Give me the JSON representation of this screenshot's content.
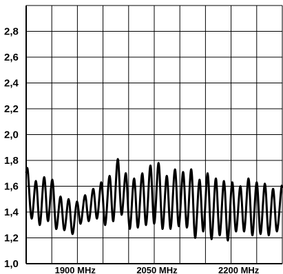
{
  "chart_data": {
    "type": "line",
    "title": "",
    "xlabel": "",
    "ylabel": "",
    "grid": true,
    "y_ticks": [
      "1,0",
      "1,2",
      "1,4",
      "1,6",
      "1,8",
      "2,0",
      "2,2",
      "2,4",
      "2,6",
      "2,8"
    ],
    "y_tick_values": [
      1.0,
      1.2,
      1.4,
      1.6,
      1.8,
      2.0,
      2.2,
      2.4,
      2.6,
      2.8
    ],
    "x_ticks": [
      "1900 MHz",
      "2050 MHz",
      "2200 MHz"
    ],
    "x_tick_values": [
      1900,
      2050,
      2200
    ],
    "xlim": [
      1810,
      2280
    ],
    "ylim": [
      1.0,
      3.0
    ],
    "series": [
      {
        "color": "#000000",
        "x": [
          1810,
          1813,
          1820,
          1828,
          1835,
          1843,
          1850,
          1858,
          1865,
          1873,
          1880,
          1888,
          1895,
          1903,
          1910,
          1918,
          1925,
          1933,
          1940,
          1948,
          1955,
          1963,
          1970,
          1978,
          1985,
          1993,
          2000,
          2008,
          2015,
          2023,
          2030,
          2038,
          2045,
          2053,
          2060,
          2068,
          2075,
          2083,
          2090,
          2098,
          2105,
          2113,
          2120,
          2128,
          2135,
          2143,
          2150,
          2158,
          2165,
          2173,
          2180,
          2188,
          2195,
          2203,
          2210,
          2218,
          2225,
          2233,
          2240,
          2248,
          2255,
          2263,
          2270,
          2278,
          2280
        ],
        "y": [
          1.7,
          1.72,
          1.35,
          1.64,
          1.3,
          1.67,
          1.33,
          1.65,
          1.27,
          1.52,
          1.26,
          1.5,
          1.23,
          1.48,
          1.31,
          1.53,
          1.33,
          1.58,
          1.35,
          1.63,
          1.3,
          1.68,
          1.33,
          1.81,
          1.38,
          1.7,
          1.27,
          1.66,
          1.28,
          1.7,
          1.3,
          1.76,
          1.31,
          1.78,
          1.27,
          1.68,
          1.27,
          1.73,
          1.29,
          1.71,
          1.28,
          1.73,
          1.2,
          1.65,
          1.25,
          1.7,
          1.19,
          1.66,
          1.22,
          1.64,
          1.18,
          1.63,
          1.25,
          1.6,
          1.25,
          1.66,
          1.22,
          1.63,
          1.23,
          1.62,
          1.22,
          1.58,
          1.25,
          1.58,
          1.58
        ]
      }
    ]
  }
}
